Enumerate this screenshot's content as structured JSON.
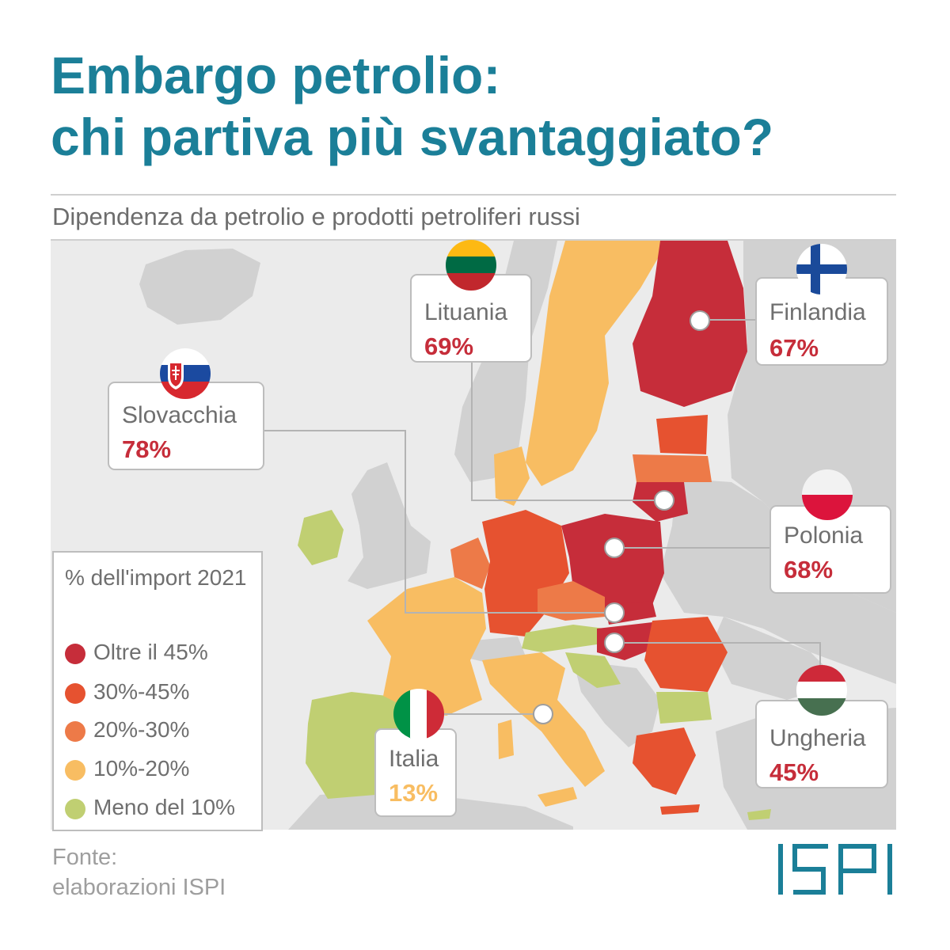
{
  "title": {
    "line1": "Embargo petrolio:",
    "line2": "chi partiva più svantaggiato?"
  },
  "subtitle": "Dipendenza da petrolio e prodotti petroliferi russi",
  "colors": {
    "title": "#1b7f98",
    "over45": "#c62d3a",
    "r30_45": "#e65230",
    "r20_30": "#ed7a48",
    "r10_20": "#f8bd62",
    "under10": "#c0cf72",
    "non_eu": "#d1d1d1",
    "sea": "#ebebeb"
  },
  "callouts": {
    "lituania": {
      "name": "Lituania",
      "value": "69%",
      "category": "over45",
      "flag": "lithuania-flag"
    },
    "finlandia": {
      "name": "Finlandia",
      "value": "67%",
      "category": "over45",
      "flag": "finland-flag"
    },
    "slovacchia": {
      "name": "Slovacchia",
      "value": "78%",
      "category": "over45",
      "flag": "slovakia-flag"
    },
    "polonia": {
      "name": "Polonia",
      "value": "68%",
      "category": "over45",
      "flag": "poland-flag"
    },
    "ungheria": {
      "name": "Ungheria",
      "value": "45%",
      "category": "over45",
      "flag": "hungary-flag"
    },
    "italia": {
      "name": "Italia",
      "value": "13%",
      "category": "r10_20",
      "flag": "italy-flag"
    }
  },
  "legend": {
    "title": "% dell'import 2021",
    "items": [
      {
        "label": "Oltre il 45%",
        "color": "#c62d3a"
      },
      {
        "label": "30%-45%",
        "color": "#e65230"
      },
      {
        "label": "20%-30%",
        "color": "#ed7a48"
      },
      {
        "label": "10%-20%",
        "color": "#f8bd62"
      },
      {
        "label": "Meno del 10%",
        "color": "#c0cf72"
      }
    ]
  },
  "source": {
    "line1": "Fonte:",
    "line2": "elaborazioni ISPI"
  },
  "logo": "ISPI"
}
